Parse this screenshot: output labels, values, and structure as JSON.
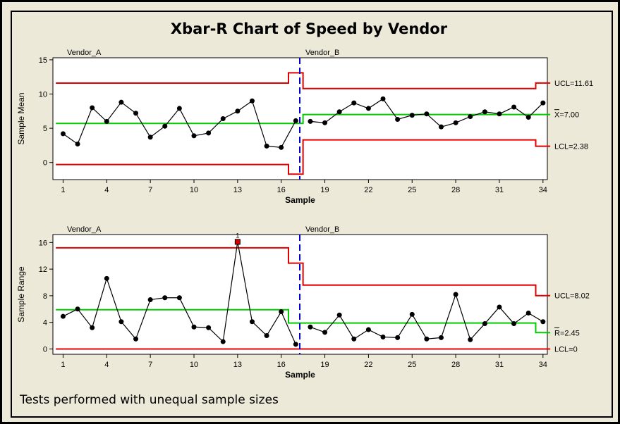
{
  "title": "Xbar-R Chart of Speed by Vendor",
  "footnote": "Tests performed with unequal sample sizes",
  "colors": {
    "data": "#000000",
    "limits": "#e00000",
    "center": "#00cc00",
    "divider": "#0000cc",
    "flagged": "#e00000"
  },
  "chart_data": [
    {
      "type": "line",
      "name": "Xbar chart",
      "ylabel": "Sample Mean",
      "xlabel": "Sample",
      "ylim": [
        -2.5,
        15.3
      ],
      "xlim": [
        0.3,
        34.3
      ],
      "yticks": [
        0,
        5,
        10,
        15
      ],
      "xticks": [
        1,
        4,
        7,
        10,
        13,
        16,
        19,
        22,
        25,
        28,
        31,
        34
      ],
      "groups": [
        {
          "label": "Vendor_A",
          "start": 1
        },
        {
          "label": "Vendor_B",
          "start": 18
        }
      ],
      "x": [
        1,
        2,
        3,
        4,
        5,
        6,
        7,
        8,
        9,
        10,
        11,
        12,
        13,
        14,
        15,
        16,
        17,
        18,
        19,
        20,
        21,
        22,
        23,
        24,
        25,
        26,
        27,
        28,
        29,
        30,
        31,
        32,
        33,
        34
      ],
      "values": [
        4.2,
        2.7,
        8.0,
        6.0,
        8.8,
        7.2,
        3.7,
        5.3,
        7.9,
        3.9,
        4.3,
        6.4,
        7.5,
        9.0,
        2.4,
        2.2,
        6.1,
        6.0,
        5.8,
        7.4,
        8.7,
        7.9,
        9.3,
        6.3,
        6.9,
        7.1,
        5.2,
        5.8,
        6.7,
        7.4,
        7.1,
        8.1,
        6.6,
        8.7
      ],
      "limits": {
        "ucl": [
          [
            0.5,
            11.6
          ],
          [
            16.5,
            11.6
          ],
          [
            16.5,
            13.1
          ],
          [
            17.5,
            13.1
          ],
          [
            17.5,
            10.8
          ],
          [
            33.5,
            10.8
          ],
          [
            33.5,
            11.61
          ],
          [
            34.5,
            11.61
          ]
        ],
        "center": [
          [
            0.5,
            5.7
          ],
          [
            17.5,
            5.7
          ],
          [
            17.5,
            7.0
          ],
          [
            34.5,
            7.0
          ]
        ],
        "lcl": [
          [
            0.5,
            -0.3
          ],
          [
            16.5,
            -0.3
          ],
          [
            16.5,
            -1.7
          ],
          [
            17.5,
            -1.7
          ],
          [
            17.5,
            3.3
          ],
          [
            33.5,
            3.3
          ],
          [
            33.5,
            2.38
          ],
          [
            34.5,
            2.38
          ]
        ]
      },
      "limit_labels": [
        {
          "text": "UCL=11.61",
          "y": 11.61
        },
        {
          "text": "X=7.00",
          "y": 7.0,
          "bar": true
        },
        {
          "text": "LCL=2.38",
          "y": 2.38
        }
      ],
      "flagged": []
    },
    {
      "type": "line",
      "name": "R chart",
      "ylabel": "Sample Range",
      "xlabel": "Sample",
      "ylim": [
        -0.8,
        17.2
      ],
      "xlim": [
        0.3,
        34.3
      ],
      "yticks": [
        0,
        4,
        8,
        12,
        16
      ],
      "xticks": [
        1,
        4,
        7,
        10,
        13,
        16,
        19,
        22,
        25,
        28,
        31,
        34
      ],
      "groups": [
        {
          "label": "Vendor_A",
          "start": 1
        },
        {
          "label": "Vendor_B",
          "start": 18
        }
      ],
      "x": [
        1,
        2,
        3,
        4,
        5,
        6,
        7,
        8,
        9,
        10,
        11,
        12,
        13,
        14,
        15,
        16,
        17,
        18,
        19,
        20,
        21,
        22,
        23,
        24,
        25,
        26,
        27,
        28,
        29,
        30,
        31,
        32,
        33,
        34
      ],
      "values": [
        4.9,
        6.0,
        3.2,
        10.6,
        4.1,
        1.5,
        7.4,
        7.7,
        7.7,
        3.3,
        3.2,
        1.1,
        16.1,
        4.1,
        2.0,
        5.6,
        0.7,
        3.3,
        2.5,
        5.1,
        1.5,
        2.9,
        1.8,
        1.7,
        5.2,
        1.5,
        1.7,
        8.2,
        1.4,
        3.8,
        6.3,
        3.8,
        5.4,
        4.1
      ],
      "limits": {
        "ucl": [
          [
            0.5,
            15.2
          ],
          [
            16.5,
            15.2
          ],
          [
            16.5,
            12.9
          ],
          [
            17.5,
            12.9
          ],
          [
            17.5,
            9.6
          ],
          [
            33.5,
            9.6
          ],
          [
            33.5,
            8.02
          ],
          [
            34.5,
            8.02
          ]
        ],
        "center": [
          [
            0.5,
            5.9
          ],
          [
            16.5,
            5.9
          ],
          [
            16.5,
            3.9
          ],
          [
            33.5,
            3.9
          ],
          [
            33.5,
            2.45
          ],
          [
            34.5,
            2.45
          ]
        ],
        "lcl": [
          [
            0.5,
            0
          ],
          [
            34.5,
            0
          ]
        ]
      },
      "limit_labels": [
        {
          "text": "UCL=8.02",
          "y": 8.02
        },
        {
          "text": "R=2.45",
          "y": 2.45,
          "bar": true
        },
        {
          "text": "LCL=0",
          "y": 0
        }
      ],
      "flagged": [
        {
          "x": 13,
          "label": "1"
        }
      ]
    }
  ]
}
